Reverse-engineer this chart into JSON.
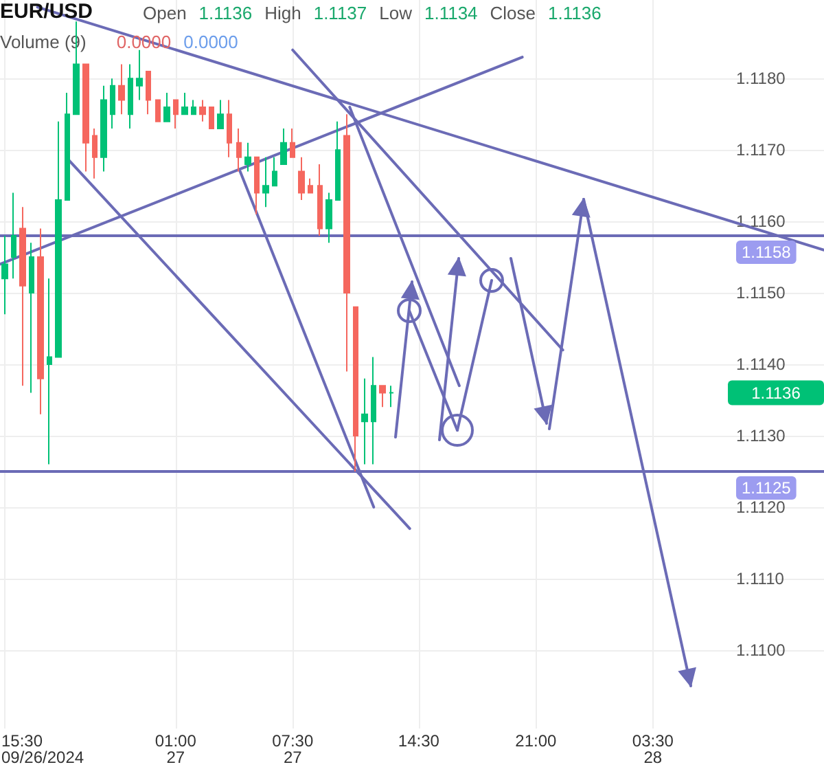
{
  "chart_data": {
    "type": "candlestick",
    "title": "EUR/USD",
    "x": [
      "2024-09-26T15:30",
      "2024-09-26T16:00",
      "2024-09-26T16:30",
      "2024-09-26T17:00",
      "2024-09-26T17:30",
      "2024-09-26T18:00",
      "2024-09-26T18:30",
      "2024-09-26T19:00",
      "2024-09-26T19:30",
      "2024-09-26T20:00",
      "2024-09-26T20:30",
      "2024-09-26T21:00",
      "2024-09-26T21:30",
      "2024-09-26T22:00",
      "2024-09-26T22:30",
      "2024-09-26T23:00",
      "2024-09-26T23:30",
      "2024-09-27T00:00",
      "2024-09-27T00:30",
      "2024-09-27T01:00",
      "2024-09-27T01:30",
      "2024-09-27T02:00",
      "2024-09-27T02:30",
      "2024-09-27T03:00",
      "2024-09-27T03:30",
      "2024-09-27T04:00",
      "2024-09-27T04:30",
      "2024-09-27T05:00",
      "2024-09-27T05:30",
      "2024-09-27T06:00",
      "2024-09-27T06:30",
      "2024-09-27T07:00",
      "2024-09-27T07:30",
      "2024-09-27T08:00",
      "2024-09-27T08:30",
      "2024-09-27T09:00",
      "2024-09-27T09:30",
      "2024-09-27T10:00",
      "2024-09-27T10:30",
      "2024-09-27T11:00",
      "2024-09-27T11:30",
      "2024-09-27T12:00",
      "2024-09-27T12:30",
      "2024-09-27T13:00"
    ],
    "ohlc": [
      [
        1.1152,
        1.1158,
        1.1147,
        1.1154
      ],
      [
        1.1155,
        1.1164,
        1.1152,
        1.1158
      ],
      [
        1.1159,
        1.1162,
        1.1137,
        1.1151
      ],
      [
        1.115,
        1.1157,
        1.1136,
        1.1155
      ],
      [
        1.1155,
        1.1159,
        1.1133,
        1.1138
      ],
      [
        1.114,
        1.1152,
        1.1126,
        1.1141
      ],
      [
        1.1141,
        1.1174,
        1.1141,
        1.1163
      ],
      [
        1.1163,
        1.1178,
        1.1163,
        1.1175
      ],
      [
        1.1175,
        1.1188,
        1.1175,
        1.1182
      ],
      [
        1.1182,
        1.1182,
        1.1167,
        1.1171
      ],
      [
        1.1172,
        1.1173,
        1.1166,
        1.1169
      ],
      [
        1.1169,
        1.1179,
        1.1167,
        1.1177
      ],
      [
        1.1175,
        1.118,
        1.1173,
        1.1179
      ],
      [
        1.1179,
        1.1182,
        1.1175,
        1.1177
      ],
      [
        1.1175,
        1.1182,
        1.1173,
        1.118
      ],
      [
        1.1179,
        1.1184,
        1.1177,
        1.118
      ],
      [
        1.1181,
        1.1181,
        1.1175,
        1.1177
      ],
      [
        1.1177,
        1.1177,
        1.1174,
        1.1174
      ],
      [
        1.1174,
        1.1178,
        1.1174,
        1.1176
      ],
      [
        1.1177,
        1.1177,
        1.1173,
        1.1175
      ],
      [
        1.1175,
        1.1178,
        1.1175,
        1.1176
      ],
      [
        1.1175,
        1.1177,
        1.1175,
        1.1176
      ],
      [
        1.1176,
        1.1177,
        1.1174,
        1.1175
      ],
      [
        1.1176,
        1.1176,
        1.1173,
        1.1173
      ],
      [
        1.1173,
        1.1177,
        1.1173,
        1.1175
      ],
      [
        1.1175,
        1.1177,
        1.1169,
        1.1171
      ],
      [
        1.1171,
        1.1173,
        1.1167,
        1.1169
      ],
      [
        1.1168,
        1.1171,
        1.1167,
        1.1169
      ],
      [
        1.1169,
        1.1169,
        1.1161,
        1.1164
      ],
      [
        1.1164,
        1.1169,
        1.1162,
        1.1165
      ],
      [
        1.1165,
        1.1169,
        1.1165,
        1.1167
      ],
      [
        1.1168,
        1.1173,
        1.1168,
        1.1171
      ],
      [
        1.1171,
        1.1173,
        1.1169,
        1.1169
      ],
      [
        1.1167,
        1.1169,
        1.1163,
        1.1164
      ],
      [
        1.1165,
        1.1166,
        1.1164,
        1.1164
      ],
      [
        1.1165,
        1.1168,
        1.1158,
        1.1159
      ],
      [
        1.1159,
        1.1164,
        1.1157,
        1.1163
      ],
      [
        1.1163,
        1.1174,
        1.1163,
        1.117
      ],
      [
        1.1172,
        1.1175,
        1.1139,
        1.115
      ],
      [
        1.1148,
        1.1148,
        1.1125,
        1.113
      ],
      [
        1.1132,
        1.1138,
        1.1126,
        1.1133
      ],
      [
        1.1132,
        1.1141,
        1.1126,
        1.1137
      ],
      [
        1.1137,
        1.1137,
        1.1134,
        1.1136
      ],
      [
        1.1136,
        1.1137,
        1.1134,
        1.1136
      ]
    ],
    "colors": [
      "#00c176",
      "#00c176",
      "#f5675e",
      "#00c176",
      "#f5675e",
      "#00c176",
      "#00c176",
      "#00c176",
      "#00c176",
      "#f5675e",
      "#f5675e",
      "#00c176",
      "#00c176",
      "#f5675e",
      "#00c176",
      "#00c176",
      "#f5675e",
      "#f5675e",
      "#00c176",
      "#f5675e",
      "#00c176",
      "#00c176",
      "#f5675e",
      "#f5675e",
      "#00c176",
      "#f5675e",
      "#f5675e",
      "#00c176",
      "#f5675e",
      "#00c176",
      "#00c176",
      "#00c176",
      "#f5675e",
      "#f5675e",
      "#f5675e",
      "#f5675e",
      "#00c176",
      "#00c176",
      "#f5675e",
      "#f5675e",
      "#00c176",
      "#00c176",
      "#f5675e",
      "#00c176"
    ],
    "series": [
      {
        "type": "line",
        "color": "#6b6bb6",
        "x": [
          "2024-09-26T17:20",
          "2024-09-28T13:00"
        ],
        "values": [
          1.119,
          1.1156
        ]
      },
      {
        "type": "line",
        "color": "#6b6bb6",
        "x": [
          "2024-09-26T15:15",
          "2024-09-27T20:15"
        ],
        "values": [
          1.1154,
          1.1183
        ]
      },
      {
        "type": "line",
        "color": "#6b6bb6",
        "x": [
          "2024-09-26T18:55",
          "2024-09-27T14:00"
        ],
        "values": [
          1.1169,
          1.1117
        ]
      },
      {
        "type": "line",
        "color": "#6b6bb6",
        "x": [
          "2024-09-27T04:35",
          "2024-09-27T12:00"
        ],
        "values": [
          1.1167,
          1.112
        ]
      },
      {
        "type": "line",
        "color": "#6b6bb6",
        "x": [
          "2024-09-27T07:30",
          "2024-09-27T22:30"
        ],
        "values": [
          1.1184,
          1.1142
        ]
      },
      {
        "type": "line",
        "color": "#6b6bb6",
        "x": [
          "2024-09-27T10:40",
          "2024-09-27T16:45"
        ],
        "values": [
          1.1176,
          1.1137
        ]
      }
    ],
    "marker": "none",
    "line_style": "solid",
    "xlim": [
      "2024-09-26T15:15",
      "2024-09-28T13:00"
    ],
    "xticks": [
      {
        "value": "2024-09-26T15:30",
        "label": "15:30\n09/26/2024"
      },
      {
        "value": "2024-09-27T01:00",
        "label": "01:00\n27"
      },
      {
        "value": "2024-09-27T07:30",
        "label": "07:30\n27"
      },
      {
        "value": "2024-09-27T14:30",
        "label": "14:30"
      },
      {
        "value": "2024-09-27T21:00",
        "label": "21:00"
      },
      {
        "value": "2024-09-28T03:30",
        "label": "03:30\n28"
      }
    ],
    "ylim": [
      1.1089,
      1.1191
    ],
    "yticks": [
      {
        "value": 1.11,
        "label": "1.1100"
      },
      {
        "value": 1.111,
        "label": "1.1110"
      },
      {
        "value": 1.112,
        "label": "1.1120"
      },
      {
        "value": 1.113,
        "label": "1.1130"
      },
      {
        "value": 1.114,
        "label": "1.1140"
      },
      {
        "value": 1.115,
        "label": "1.1150"
      },
      {
        "value": 1.116,
        "label": "1.1160"
      },
      {
        "value": 1.117,
        "label": "1.1170"
      },
      {
        "value": 1.118,
        "label": "1.1180"
      }
    ],
    "grid": true,
    "ref_lines": [
      {
        "axis": "y",
        "value": 1.1158,
        "label": "1.1158",
        "color": "#6b6bb6"
      },
      {
        "axis": "y",
        "value": 1.1125,
        "label": "1.1125",
        "color": "#6b6bb6"
      }
    ],
    "annotations": [
      "Open",
      "1.1136",
      "High",
      "1.1137",
      "Low",
      "1.1134",
      "Close",
      "1.1136",
      "Volume (9)",
      "0.0000",
      "0.0000",
      "1.1136"
    ]
  }
}
